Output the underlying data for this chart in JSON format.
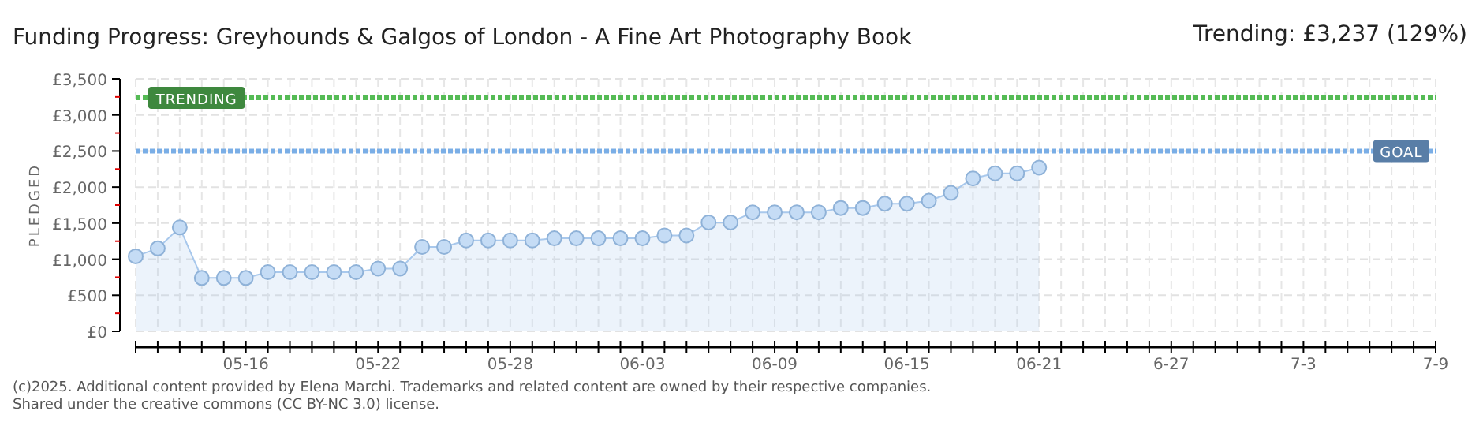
{
  "chart_data": {
    "type": "area",
    "title": "Funding Progress: Greyhounds & Galgos of London - A Fine Art Photography Book",
    "subtitle": "Trending:  £3,237 (129%)",
    "ylabel": "PLEDGED",
    "x": [
      "--05-11",
      "--05-12",
      "--05-13",
      "--05-14",
      "--05-15",
      "--05-16",
      "--05-17",
      "--05-18",
      "--05-19",
      "--05-20",
      "--05-21",
      "--05-22",
      "--05-23",
      "--05-24",
      "--05-25",
      "--05-26",
      "--05-27",
      "--05-28",
      "--05-29",
      "--05-30",
      "--05-31",
      "--06-01",
      "--06-02",
      "--06-03",
      "--06-04",
      "--06-05",
      "--06-06",
      "--06-07",
      "--06-08",
      "--06-09",
      "--06-10",
      "--06-11",
      "--06-12",
      "--06-13",
      "--06-14",
      "--06-15",
      "--06-16",
      "--06-17",
      "--06-18",
      "--06-19",
      "--06-20",
      "--06-21"
    ],
    "series": [
      {
        "color": "#a8c8ec",
        "values": [
          1040,
          1150,
          1440,
          740,
          740,
          740,
          820,
          820,
          820,
          820,
          820,
          870,
          870,
          1170,
          1170,
          1260,
          1260,
          1260,
          1260,
          1290,
          1290,
          1290,
          1290,
          1290,
          1330,
          1330,
          1510,
          1510,
          1650,
          1650,
          1650,
          1650,
          1710,
          1710,
          1770,
          1770,
          1810,
          1920,
          2120,
          2190,
          2190,
          2270
        ]
      }
    ],
    "xlim": [
      "--05-11",
      "--07-09"
    ],
    "xticks": [
      {
        "value": "--05-11",
        "label": null
      },
      {
        "value": "--05-12",
        "label": null
      },
      {
        "value": "--05-13",
        "label": null
      },
      {
        "value": "--05-14",
        "label": null
      },
      {
        "value": "--05-15",
        "label": null
      },
      {
        "value": "--05-16",
        "label": "05-16"
      },
      {
        "value": "--05-17",
        "label": null
      },
      {
        "value": "--05-18",
        "label": null
      },
      {
        "value": "--05-19",
        "label": null
      },
      {
        "value": "--05-20",
        "label": null
      },
      {
        "value": "--05-21",
        "label": null
      },
      {
        "value": "--05-22",
        "label": "05-22"
      },
      {
        "value": "--05-23",
        "label": null
      },
      {
        "value": "--05-24",
        "label": null
      },
      {
        "value": "--05-25",
        "label": null
      },
      {
        "value": "--05-26",
        "label": null
      },
      {
        "value": "--05-27",
        "label": null
      },
      {
        "value": "--05-28",
        "label": "05-28"
      },
      {
        "value": "--05-29",
        "label": null
      },
      {
        "value": "--05-30",
        "label": null
      },
      {
        "value": "--05-31",
        "label": null
      },
      {
        "value": "--06-01",
        "label": null
      },
      {
        "value": "--06-02",
        "label": null
      },
      {
        "value": "--06-03",
        "label": "06-03"
      },
      {
        "value": "--06-04",
        "label": null
      },
      {
        "value": "--06-05",
        "label": null
      },
      {
        "value": "--06-06",
        "label": null
      },
      {
        "value": "--06-07",
        "label": null
      },
      {
        "value": "--06-08",
        "label": null
      },
      {
        "value": "--06-09",
        "label": "06-09"
      },
      {
        "value": "--06-10",
        "label": null
      },
      {
        "value": "--06-11",
        "label": null
      },
      {
        "value": "--06-12",
        "label": null
      },
      {
        "value": "--06-13",
        "label": null
      },
      {
        "value": "--06-14",
        "label": null
      },
      {
        "value": "--06-15",
        "label": "06-15"
      },
      {
        "value": "--06-16",
        "label": null
      },
      {
        "value": "--06-17",
        "label": null
      },
      {
        "value": "--06-18",
        "label": null
      },
      {
        "value": "--06-19",
        "label": null
      },
      {
        "value": "--06-20",
        "label": null
      },
      {
        "value": "--06-21",
        "label": "06-21"
      },
      {
        "value": "--06-22",
        "label": null
      },
      {
        "value": "--06-23",
        "label": null
      },
      {
        "value": "--06-24",
        "label": null
      },
      {
        "value": "--06-25",
        "label": null
      },
      {
        "value": "--06-26",
        "label": null
      },
      {
        "value": "--06-27",
        "label": "6-27"
      },
      {
        "value": "--06-28",
        "label": null
      },
      {
        "value": "--06-29",
        "label": null
      },
      {
        "value": "--06-30",
        "label": null
      },
      {
        "value": "--07-01",
        "label": null
      },
      {
        "value": "--07-02",
        "label": null
      },
      {
        "value": "--07-03",
        "label": "7-3"
      },
      {
        "value": "--07-04",
        "label": null
      },
      {
        "value": "--07-05",
        "label": null
      },
      {
        "value": "--07-06",
        "label": null
      },
      {
        "value": "--07-07",
        "label": null
      },
      {
        "value": "--07-08",
        "label": null
      },
      {
        "value": "--07-09",
        "label": "7-9"
      }
    ],
    "ylim": [
      0,
      3500
    ],
    "yticks": [
      {
        "value": 0,
        "label": "£0"
      },
      {
        "value": 250,
        "label": null
      },
      {
        "value": 500,
        "label": "£500"
      },
      {
        "value": 750,
        "label": null
      },
      {
        "value": 1000,
        "label": "£1,000"
      },
      {
        "value": 1250,
        "label": null
      },
      {
        "value": 1500,
        "label": "£1,500"
      },
      {
        "value": 1750,
        "label": null
      },
      {
        "value": 2000,
        "label": "£2,000"
      },
      {
        "value": 2250,
        "label": null
      },
      {
        "value": 2500,
        "label": "£2,500"
      },
      {
        "value": 2750,
        "label": null
      },
      {
        "value": 3000,
        "label": "£3,000"
      },
      {
        "value": 3250,
        "label": null
      },
      {
        "value": 3500,
        "label": "£3,500"
      }
    ],
    "ref_lines": [
      {
        "axis": "y",
        "value": 3237,
        "label": "TRENDING",
        "color": "#55bb55",
        "line_style": "dotted"
      },
      {
        "axis": "y",
        "value": 2500,
        "label": "GOAL",
        "color": "#7aaee6",
        "line_style": "dotted"
      }
    ],
    "grid": true,
    "marker": "circle",
    "annotations": [
      "(c)2025. Additional content provided by Elena Marchi. Trademarks and related content are owned by their respective companies.",
      "Shared under the creative commons (CC BY-NC 3.0) license."
    ]
  }
}
